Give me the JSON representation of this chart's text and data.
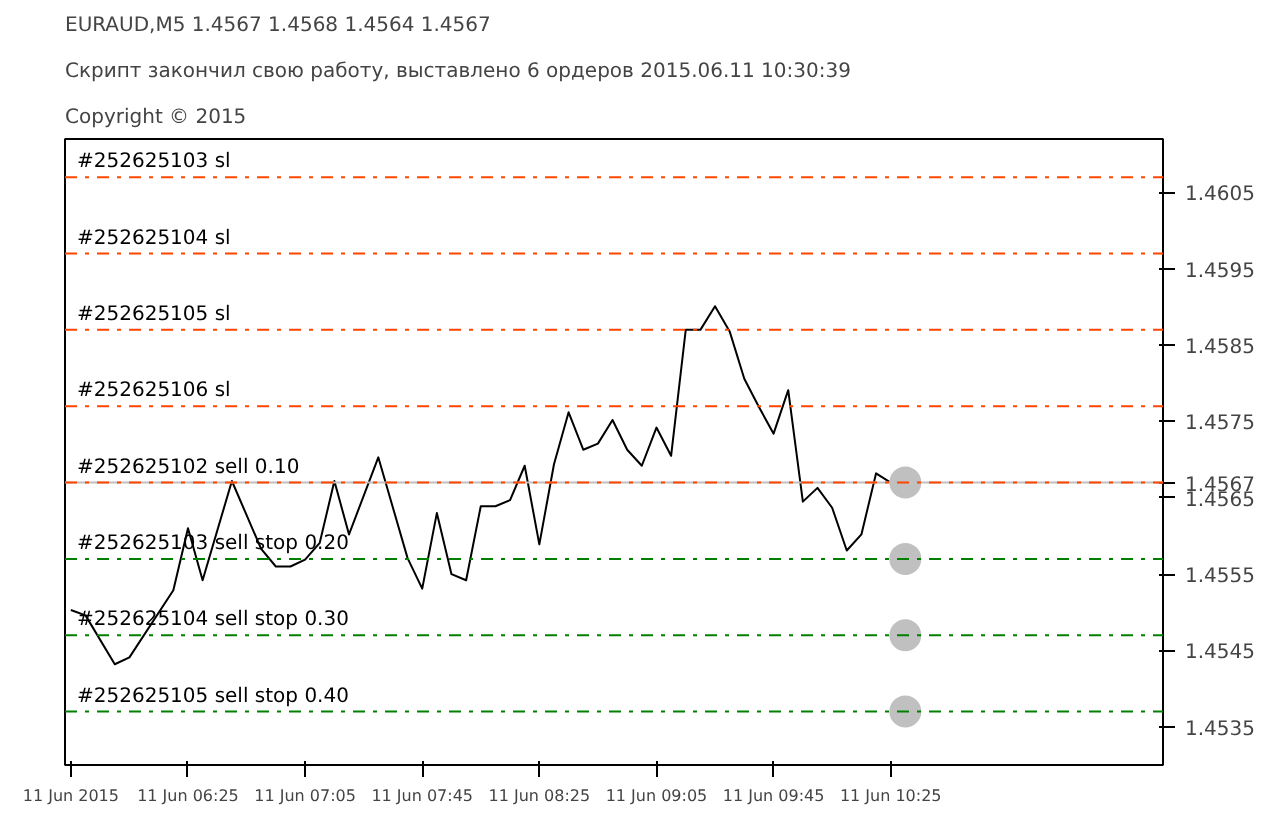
{
  "chart_data": {
    "type": "line",
    "title": "EURAUD,M5  1.4567 1.4568 1.4564 1.4567",
    "subtitle": "Скрипт закончил свою работу, выставлено 6 ордеров  2015.06.11 10:30:39",
    "annotations": [
      "Copyright © 2015"
    ],
    "xlim": [
      "2015-06-11T05:43",
      "2015-06-11T11:58"
    ],
    "ylim": [
      1.453,
      1.4612
    ],
    "xticks": [
      {
        "value": "2015-06-11T05:45",
        "label": "11 Jun 2015"
      },
      {
        "value": "2015-06-11T06:25",
        "label": "11 Jun 06:25"
      },
      {
        "value": "2015-06-11T07:05",
        "label": "11 Jun 07:05"
      },
      {
        "value": "2015-06-11T07:45",
        "label": "11 Jun 07:45"
      },
      {
        "value": "2015-06-11T08:25",
        "label": "11 Jun 08:25"
      },
      {
        "value": "2015-06-11T09:05",
        "label": "11 Jun 09:05"
      },
      {
        "value": "2015-06-11T09:45",
        "label": "11 Jun 09:45"
      },
      {
        "value": "2015-06-11T10:25",
        "label": "11 Jun 10:25"
      }
    ],
    "yticks": [
      1.4535,
      1.4545,
      1.4555,
      1.4565,
      1.4567,
      1.4575,
      1.4585,
      1.4595,
      1.4605
    ],
    "grid": false,
    "series": [
      {
        "color": "#000000",
        "x": [
          "2015-06-11T05:45",
          "2015-06-11T05:50",
          "2015-06-11T06:00",
          "2015-06-11T06:05",
          "2015-06-11T06:20",
          "2015-06-11T06:25",
          "2015-06-11T06:30",
          "2015-06-11T06:40",
          "2015-06-11T06:50",
          "2015-06-11T06:55",
          "2015-06-11T07:00",
          "2015-06-11T07:05",
          "2015-06-11T07:10",
          "2015-06-11T07:15",
          "2015-06-11T07:20",
          "2015-06-11T07:30",
          "2015-06-11T07:40",
          "2015-06-11T07:45",
          "2015-06-11T07:50",
          "2015-06-11T07:55",
          "2015-06-11T08:00",
          "2015-06-11T08:05",
          "2015-06-11T08:10",
          "2015-06-11T08:15",
          "2015-06-11T08:20",
          "2015-06-11T08:25",
          "2015-06-11T08:30",
          "2015-06-11T08:35",
          "2015-06-11T08:40",
          "2015-06-11T08:45",
          "2015-06-11T08:50",
          "2015-06-11T08:55",
          "2015-06-11T09:00",
          "2015-06-11T09:05",
          "2015-06-11T09:10",
          "2015-06-11T09:15",
          "2015-06-11T09:20",
          "2015-06-11T09:25",
          "2015-06-11T09:30",
          "2015-06-11T09:35",
          "2015-06-11T09:40",
          "2015-06-11T09:45",
          "2015-06-11T09:50",
          "2015-06-11T09:55",
          "2015-06-11T10:00",
          "2015-06-11T10:05",
          "2015-06-11T10:10",
          "2015-06-11T10:15",
          "2015-06-11T10:20",
          "2015-06-11T10:25"
        ],
        "values": [
          1.45503,
          1.45496,
          1.45432,
          1.45441,
          1.45529,
          1.4561,
          1.45542,
          1.45672,
          1.45583,
          1.4556,
          1.4556,
          1.45569,
          1.45591,
          1.45672,
          1.45602,
          1.45703,
          1.45571,
          1.45531,
          1.4563,
          1.4555,
          1.45542,
          1.45639,
          1.45639,
          1.45647,
          1.45692,
          1.45589,
          1.45694,
          1.45762,
          1.45713,
          1.45721,
          1.45752,
          1.45713,
          1.45692,
          1.45742,
          1.45705,
          1.4587,
          1.4587,
          1.45901,
          1.45868,
          1.45806,
          1.45769,
          1.45734,
          1.45791,
          1.45645,
          1.45663,
          1.45637,
          1.45581,
          1.45602,
          1.45682,
          1.4567
        ]
      },
      {
        "type": "scatter",
        "color": "#c0c0c0",
        "x": [
          "2015-06-11T10:30",
          "2015-06-11T10:30",
          "2015-06-11T10:30",
          "2015-06-11T10:30"
        ],
        "values": [
          1.4567,
          1.4557,
          1.4547,
          1.4537
        ]
      }
    ],
    "ref_lines": [
      {
        "axis": "y",
        "value": 1.4567,
        "label": null,
        "color": "#c0c0c0",
        "line_style": "solid"
      },
      {
        "axis": "y",
        "value": 1.4607,
        "label": "#252625103 sl",
        "color": "#ff4500",
        "line_style": "dashdot"
      },
      {
        "axis": "y",
        "value": 1.4597,
        "label": "#252625104 sl",
        "color": "#ff4500",
        "line_style": "dashdot"
      },
      {
        "axis": "y",
        "value": 1.4587,
        "label": "#252625105 sl",
        "color": "#ff4500",
        "line_style": "dashdot"
      },
      {
        "axis": "y",
        "value": 1.4577,
        "label": "#252625106 sl",
        "color": "#ff4500",
        "line_style": "dashdot"
      },
      {
        "axis": "y",
        "value": 1.4567,
        "label": "#252625102 sell 0.10",
        "color": "#ff4500",
        "line_style": "dashdot"
      },
      {
        "axis": "y",
        "value": 1.4557,
        "label": "#252625103 sell stop 0.20",
        "color": "#008000",
        "line_style": "dashdot"
      },
      {
        "axis": "y",
        "value": 1.4547,
        "label": "#252625104 sell stop 0.30",
        "color": "#008000",
        "line_style": "dashdot"
      },
      {
        "axis": "y",
        "value": 1.4537,
        "label": "#252625105 sell stop 0.40",
        "color": "#008000",
        "line_style": "dashdot"
      }
    ]
  }
}
